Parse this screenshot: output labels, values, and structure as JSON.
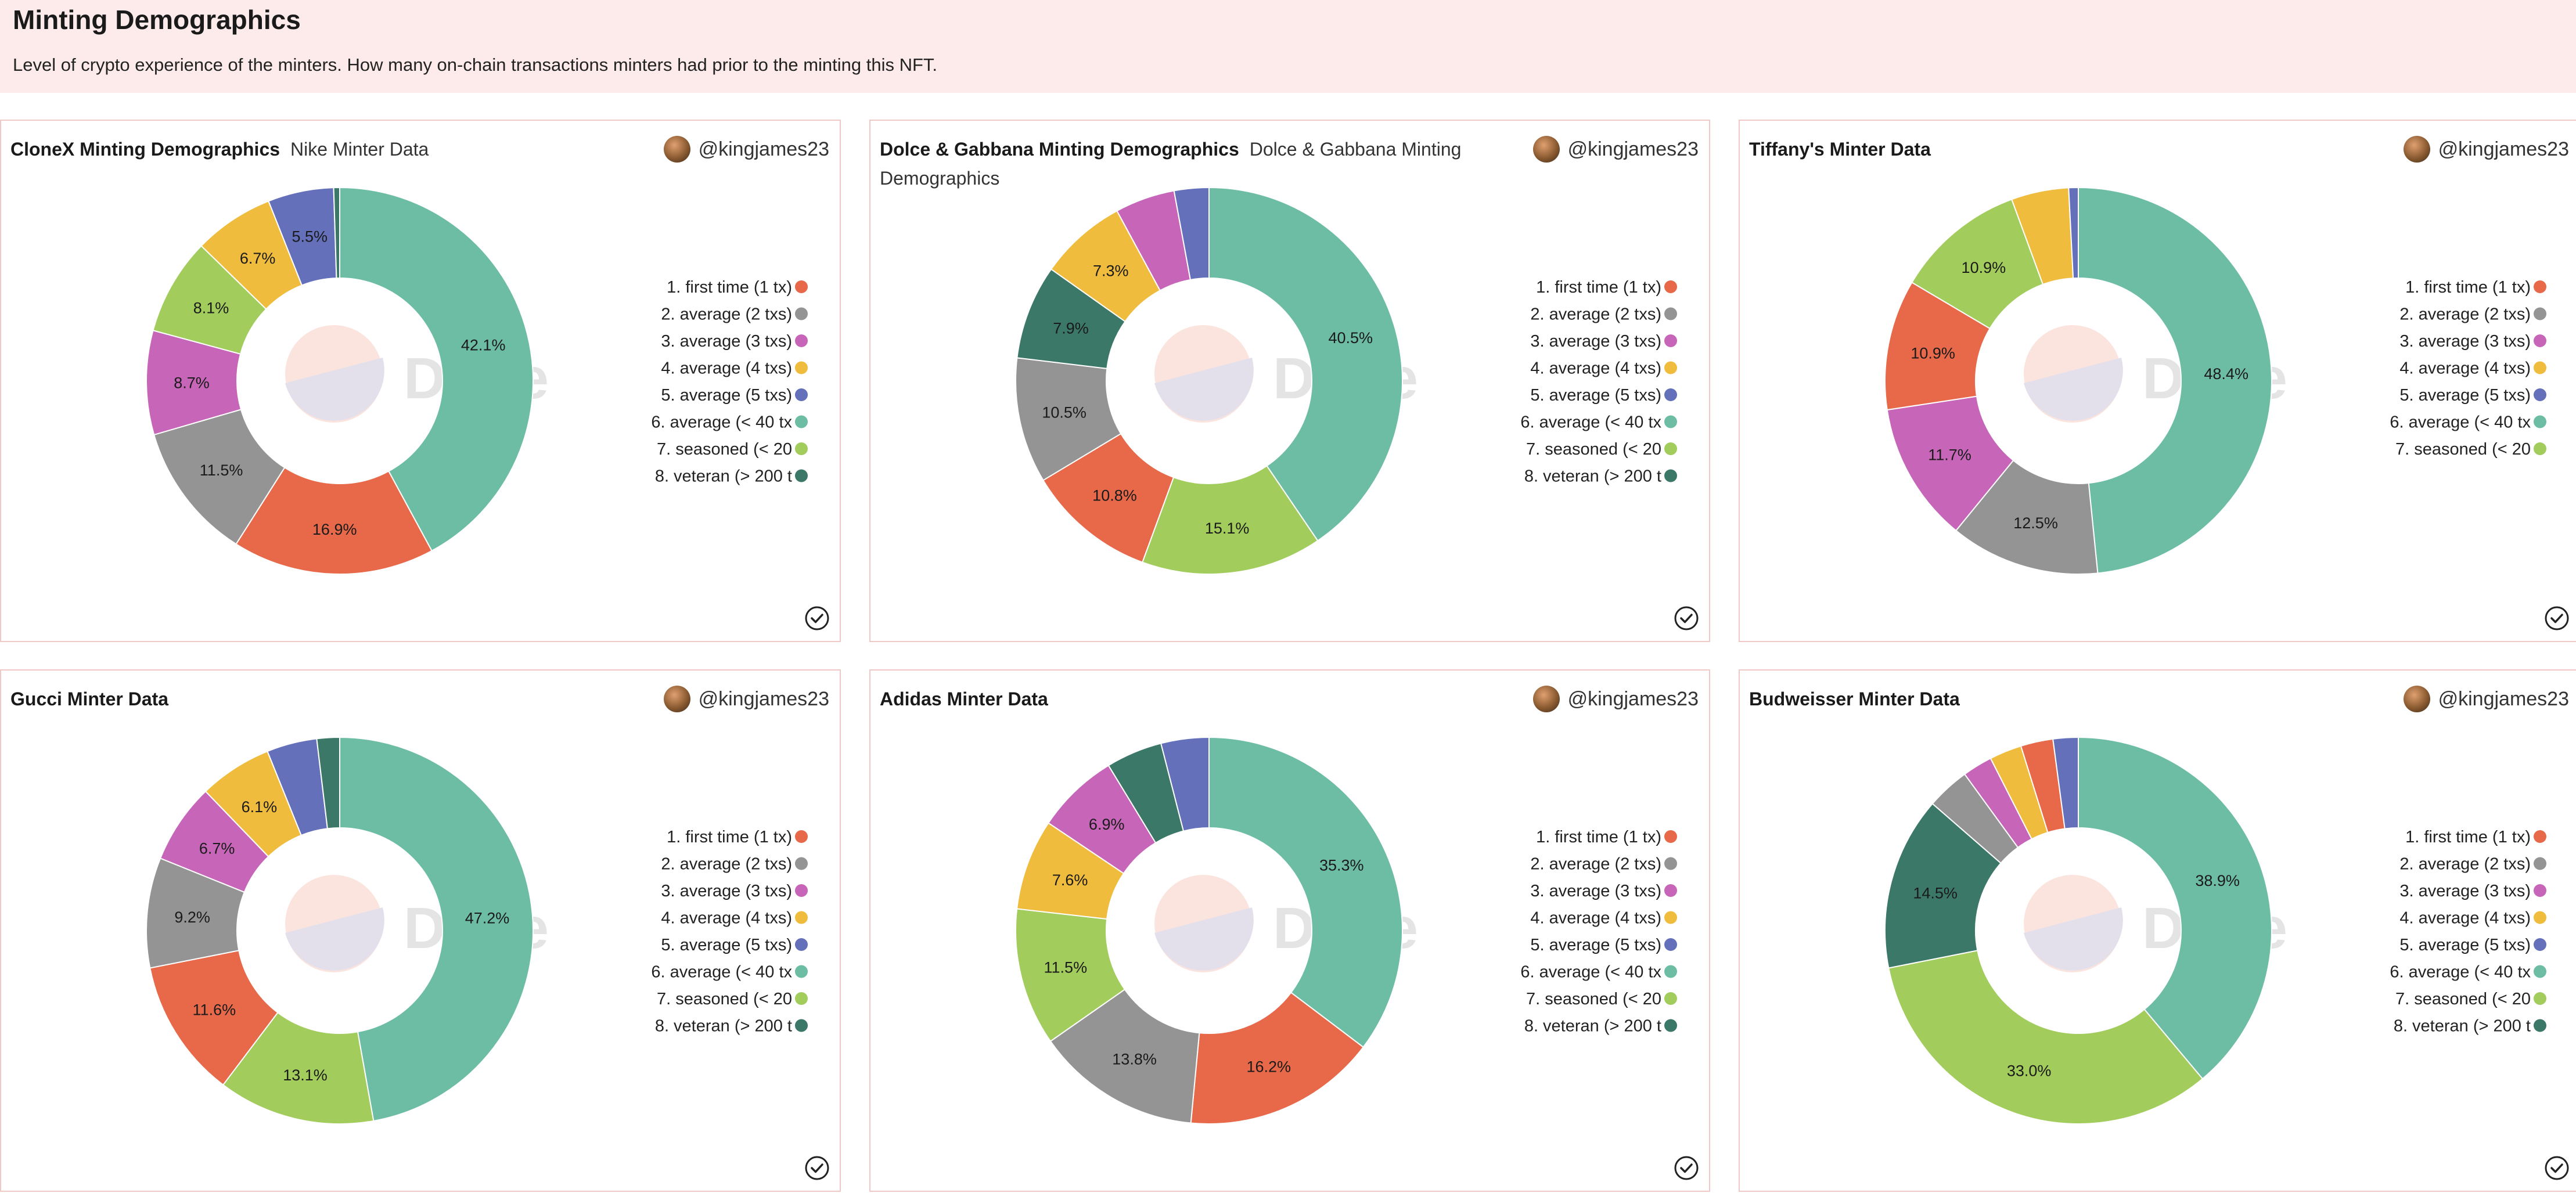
{
  "page": {
    "title": "Minting Demographics",
    "description": "Level of crypto experience of the minters. How many on-chain transactions minters had prior to the minting this NFT."
  },
  "colors": {
    "first_time": "#e8694a",
    "avg2": "#949494",
    "avg3": "#c766b8",
    "avg4": "#efbc3e",
    "avg5": "#6470ba",
    "avg40": "#6dbda5",
    "seasoned": "#a2cc5c",
    "veteran": "#3c7867"
  },
  "watermark": "Dune",
  "cards": [
    {
      "title": "CloneX Minting Demographics",
      "subtitle": "Nike Minter Data",
      "author": "@kingjames23",
      "legend": [
        "1. first time (1 tx)",
        "2. average (2 txs)",
        "3. average (3 txs)",
        "4. average (4 txs)",
        "5. average (5 txs)",
        "6. average (< 40 tx",
        "7. seasoned (< 20",
        "8. veteran (> 200 t"
      ]
    },
    {
      "title": "Dolce & Gabbana Minting Demographics",
      "subtitle": "Dolce & Gabbana Minting Demographics",
      "author": "@kingjames23",
      "legend": [
        "1. first time (1 tx)",
        "2. average (2 txs)",
        "3. average (3 txs)",
        "4. average (4 txs)",
        "5. average (5 txs)",
        "6. average (< 40 tx",
        "7. seasoned (< 20",
        "8. veteran (> 200 t"
      ]
    },
    {
      "title": "Tiffany's Minter Data",
      "subtitle": "",
      "author": "@kingjames23",
      "legend": [
        "1. first time (1 tx)",
        "2. average (2 txs)",
        "3. average (3 txs)",
        "4. average (4 txs)",
        "5. average (5 txs)",
        "6. average (< 40 tx",
        "7. seasoned (< 20"
      ]
    },
    {
      "title": "Gucci Minter Data",
      "subtitle": "",
      "author": "@kingjames23",
      "legend": [
        "1. first time (1 tx)",
        "2. average (2 txs)",
        "3. average (3 txs)",
        "4. average (4 txs)",
        "5. average (5 txs)",
        "6. average (< 40 tx",
        "7. seasoned (< 20",
        "8. veteran (> 200 t"
      ]
    },
    {
      "title": "Adidas Minter Data",
      "subtitle": "",
      "author": "@kingjames23",
      "legend": [
        "1. first time (1 tx)",
        "2. average (2 txs)",
        "3. average (3 txs)",
        "4. average (4 txs)",
        "5. average (5 txs)",
        "6. average (< 40 tx",
        "7. seasoned (< 20",
        "8. veteran (> 200 t"
      ]
    },
    {
      "title": "Budweisser Minter Data",
      "subtitle": "",
      "author": "@kingjames23",
      "legend": [
        "1. first time (1 tx)",
        "2. average (2 txs)",
        "3. average (3 txs)",
        "4. average (4 txs)",
        "5. average (5 txs)",
        "6. average (< 40 tx",
        "7. seasoned (< 20",
        "8. veteran (> 200 t"
      ]
    }
  ],
  "chart_data": [
    {
      "type": "pie",
      "categories": [
        "1. first time (1 tx)",
        "2. average (2 txs)",
        "3. average (3 txs)",
        "4. average (4 txs)",
        "5. average (5 txs)",
        "6. average (< 40 tx",
        "7. seasoned (< 20",
        "8. veteran (> 200 t"
      ],
      "slices": [
        {
          "cat": 5,
          "value": 42.1,
          "label": "42.1%"
        },
        {
          "cat": 0,
          "value": 16.9,
          "label": "16.9%"
        },
        {
          "cat": 1,
          "value": 11.5,
          "label": "11.5%"
        },
        {
          "cat": 2,
          "value": 8.7,
          "label": "8.7%"
        },
        {
          "cat": 6,
          "value": 8.1,
          "label": "8.1%"
        },
        {
          "cat": 3,
          "value": 6.7,
          "label": "6.7%"
        },
        {
          "cat": 4,
          "value": 5.5,
          "label": "5.5%"
        },
        {
          "cat": 7,
          "value": 0.5,
          "label": ""
        }
      ]
    },
    {
      "type": "pie",
      "categories": [
        "1. first time (1 tx)",
        "2. average (2 txs)",
        "3. average (3 txs)",
        "4. average (4 txs)",
        "5. average (5 txs)",
        "6. average (< 40 tx",
        "7. seasoned (< 20",
        "8. veteran (> 200 t"
      ],
      "slices": [
        {
          "cat": 5,
          "value": 40.5,
          "label": "40.5%"
        },
        {
          "cat": 6,
          "value": 15.1,
          "label": "15.1%"
        },
        {
          "cat": 0,
          "value": 10.8,
          "label": "10.8%"
        },
        {
          "cat": 1,
          "value": 10.5,
          "label": "10.5%"
        },
        {
          "cat": 7,
          "value": 7.9,
          "label": "7.9%"
        },
        {
          "cat": 3,
          "value": 7.3,
          "label": "7.3%"
        },
        {
          "cat": 2,
          "value": 5.0,
          "label": ""
        },
        {
          "cat": 4,
          "value": 2.9,
          "label": ""
        }
      ]
    },
    {
      "type": "pie",
      "categories": [
        "1. first time (1 tx)",
        "2. average (2 txs)",
        "3. average (3 txs)",
        "4. average (4 txs)",
        "5. average (5 txs)",
        "6. average (< 40 tx",
        "7. seasoned (< 20"
      ],
      "slices": [
        {
          "cat": 5,
          "value": 48.4,
          "label": "48.4%"
        },
        {
          "cat": 1,
          "value": 12.5,
          "label": "12.5%"
        },
        {
          "cat": 2,
          "value": 11.7,
          "label": "11.7%"
        },
        {
          "cat": 0,
          "value": 10.9,
          "label": "10.9%"
        },
        {
          "cat": 6,
          "value": 10.9,
          "label": "10.9%"
        },
        {
          "cat": 3,
          "value": 4.8,
          "label": ""
        },
        {
          "cat": 4,
          "value": 0.8,
          "label": ""
        }
      ]
    },
    {
      "type": "pie",
      "categories": [
        "1. first time (1 tx)",
        "2. average (2 txs)",
        "3. average (3 txs)",
        "4. average (4 txs)",
        "5. average (5 txs)",
        "6. average (< 40 tx",
        "7. seasoned (< 20",
        "8. veteran (> 200 t"
      ],
      "slices": [
        {
          "cat": 5,
          "value": 47.2,
          "label": "47.2%"
        },
        {
          "cat": 6,
          "value": 13.1,
          "label": "13.1%"
        },
        {
          "cat": 0,
          "value": 11.6,
          "label": "11.6%"
        },
        {
          "cat": 1,
          "value": 9.2,
          "label": "9.2%"
        },
        {
          "cat": 2,
          "value": 6.7,
          "label": "6.7%"
        },
        {
          "cat": 3,
          "value": 6.1,
          "label": "6.1%"
        },
        {
          "cat": 4,
          "value": 4.2,
          "label": ""
        },
        {
          "cat": 7,
          "value": 1.9,
          "label": ""
        }
      ]
    },
    {
      "type": "pie",
      "categories": [
        "1. first time (1 tx)",
        "2. average (2 txs)",
        "3. average (3 txs)",
        "4. average (4 txs)",
        "5. average (5 txs)",
        "6. average (< 40 tx",
        "7. seasoned (< 20",
        "8. veteran (> 200 t"
      ],
      "slices": [
        {
          "cat": 5,
          "value": 35.3,
          "label": "35.3%"
        },
        {
          "cat": 0,
          "value": 16.2,
          "label": "16.2%"
        },
        {
          "cat": 1,
          "value": 13.8,
          "label": "13.8%"
        },
        {
          "cat": 6,
          "value": 11.5,
          "label": "11.5%"
        },
        {
          "cat": 3,
          "value": 7.6,
          "label": "7.6%"
        },
        {
          "cat": 2,
          "value": 6.9,
          "label": "6.9%"
        },
        {
          "cat": 7,
          "value": 4.7,
          "label": ""
        },
        {
          "cat": 4,
          "value": 4.0,
          "label": ""
        }
      ]
    },
    {
      "type": "pie",
      "categories": [
        "1. first time (1 tx)",
        "2. average (2 txs)",
        "3. average (3 txs)",
        "4. average (4 txs)",
        "5. average (5 txs)",
        "6. average (< 40 tx",
        "7. seasoned (< 20",
        "8. veteran (> 200 t"
      ],
      "slices": [
        {
          "cat": 5,
          "value": 38.9,
          "label": "38.9%"
        },
        {
          "cat": 6,
          "value": 33.0,
          "label": "33.0%"
        },
        {
          "cat": 7,
          "value": 14.5,
          "label": "14.5%"
        },
        {
          "cat": 1,
          "value": 3.6,
          "label": ""
        },
        {
          "cat": 2,
          "value": 2.5,
          "label": ""
        },
        {
          "cat": 3,
          "value": 2.7,
          "label": ""
        },
        {
          "cat": 0,
          "value": 2.7,
          "label": ""
        },
        {
          "cat": 4,
          "value": 2.1,
          "label": ""
        }
      ]
    }
  ]
}
